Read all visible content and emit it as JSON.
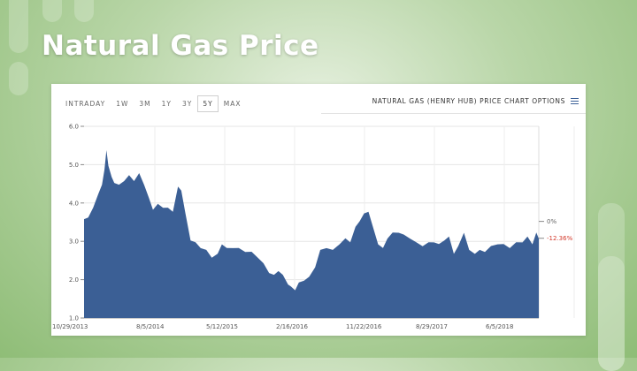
{
  "slide": {
    "title": "Natural Gas Price"
  },
  "toolbar": {
    "ranges": [
      "INTRADAY",
      "1W",
      "3M",
      "1Y",
      "3Y",
      "5Y",
      "MAX"
    ],
    "active_range": "5Y",
    "options_label": "NATURAL GAS (HENRY HUB) PRICE CHART OPTIONS",
    "menu_icon": "hamburger-menu-icon"
  },
  "colors": {
    "fill": "#3b5f95",
    "negative": "#d33a2c",
    "marker": "#666666"
  },
  "chart_data": {
    "type": "area",
    "x_tick_labels": [
      "10/29/2013",
      "8/5/2014",
      "5/12/2015",
      "2/16/2016",
      "11/22/2016",
      "8/29/2017",
      "6/5/2018"
    ],
    "y_tick_labels": [
      "1.0",
      "2.0",
      "3.0",
      "4.0",
      "5.0",
      "6.0"
    ],
    "ylim": [
      1.0,
      6.0
    ],
    "xlim": [
      "2013-10-29",
      "2018-11-20"
    ],
    "grid": true,
    "reference_markers": [
      {
        "label": "0%",
        "value": 3.52
      },
      {
        "label": "-12.36%",
        "value": 3.08
      }
    ],
    "x": [
      "2013-10-29",
      "2013-11-15",
      "2013-12-05",
      "2013-12-25",
      "2014-01-10",
      "2014-01-20",
      "2014-01-28",
      "2014-02-05",
      "2014-02-18",
      "2014-03-01",
      "2014-03-20",
      "2014-04-10",
      "2014-04-30",
      "2014-05-20",
      "2014-06-10",
      "2014-06-30",
      "2014-07-20",
      "2014-08-05",
      "2014-08-25",
      "2014-09-15",
      "2014-10-05",
      "2014-10-25",
      "2014-11-15",
      "2014-11-28",
      "2014-12-15",
      "2015-01-05",
      "2015-01-25",
      "2015-02-15",
      "2015-03-10",
      "2015-04-01",
      "2015-04-25",
      "2015-05-12",
      "2015-06-01",
      "2015-06-25",
      "2015-07-20",
      "2015-08-15",
      "2015-09-10",
      "2015-10-05",
      "2015-10-28",
      "2015-11-20",
      "2015-12-10",
      "2015-12-28",
      "2016-01-15",
      "2016-02-05",
      "2016-02-16",
      "2016-03-05",
      "2016-03-20",
      "2016-04-10",
      "2016-05-01",
      "2016-05-25",
      "2016-06-15",
      "2016-07-10",
      "2016-08-05",
      "2016-09-01",
      "2016-09-25",
      "2016-10-15",
      "2016-11-05",
      "2016-11-22",
      "2016-12-10",
      "2016-12-28",
      "2017-01-15",
      "2017-02-05",
      "2017-02-25",
      "2017-03-15",
      "2017-04-05",
      "2017-04-30",
      "2017-05-20",
      "2017-06-15",
      "2017-07-10",
      "2017-08-05",
      "2017-08-29",
      "2017-09-20",
      "2017-10-10",
      "2017-11-01",
      "2017-11-20",
      "2017-12-10",
      "2017-12-28",
      "2018-01-20",
      "2018-02-10",
      "2018-03-05",
      "2018-03-25",
      "2018-04-15",
      "2018-05-10",
      "2018-06-05",
      "2018-06-30",
      "2018-07-25",
      "2018-08-20",
      "2018-09-15",
      "2018-10-05",
      "2018-10-25",
      "2018-11-10",
      "2018-11-20"
    ],
    "y": [
      3.55,
      3.65,
      3.85,
      4.25,
      4.45,
      4.9,
      5.35,
      5.0,
      4.65,
      4.55,
      4.45,
      4.6,
      4.7,
      4.6,
      4.75,
      4.5,
      4.1,
      3.85,
      3.95,
      3.9,
      3.85,
      3.8,
      4.4,
      4.35,
      3.7,
      3.05,
      2.95,
      2.85,
      2.75,
      2.6,
      2.65,
      2.95,
      2.8,
      2.85,
      2.8,
      2.75,
      2.7,
      2.6,
      2.4,
      2.2,
      2.1,
      2.25,
      2.1,
      1.9,
      1.8,
      1.75,
      1.9,
      2.0,
      2.05,
      2.35,
      2.75,
      2.85,
      2.75,
      2.95,
      3.05,
      3.0,
      3.35,
      3.55,
      3.7,
      3.8,
      3.35,
      2.95,
      2.8,
      3.1,
      3.2,
      3.25,
      3.15,
      3.1,
      2.95,
      2.9,
      2.95,
      3.0,
      2.9,
      3.05,
      3.1,
      2.7,
      2.85,
      3.25,
      2.75,
      2.7,
      2.75,
      2.75,
      2.85,
      2.95,
      2.9,
      2.85,
      2.95,
      3.0,
      3.1,
      2.95,
      3.2,
      3.1
    ]
  }
}
